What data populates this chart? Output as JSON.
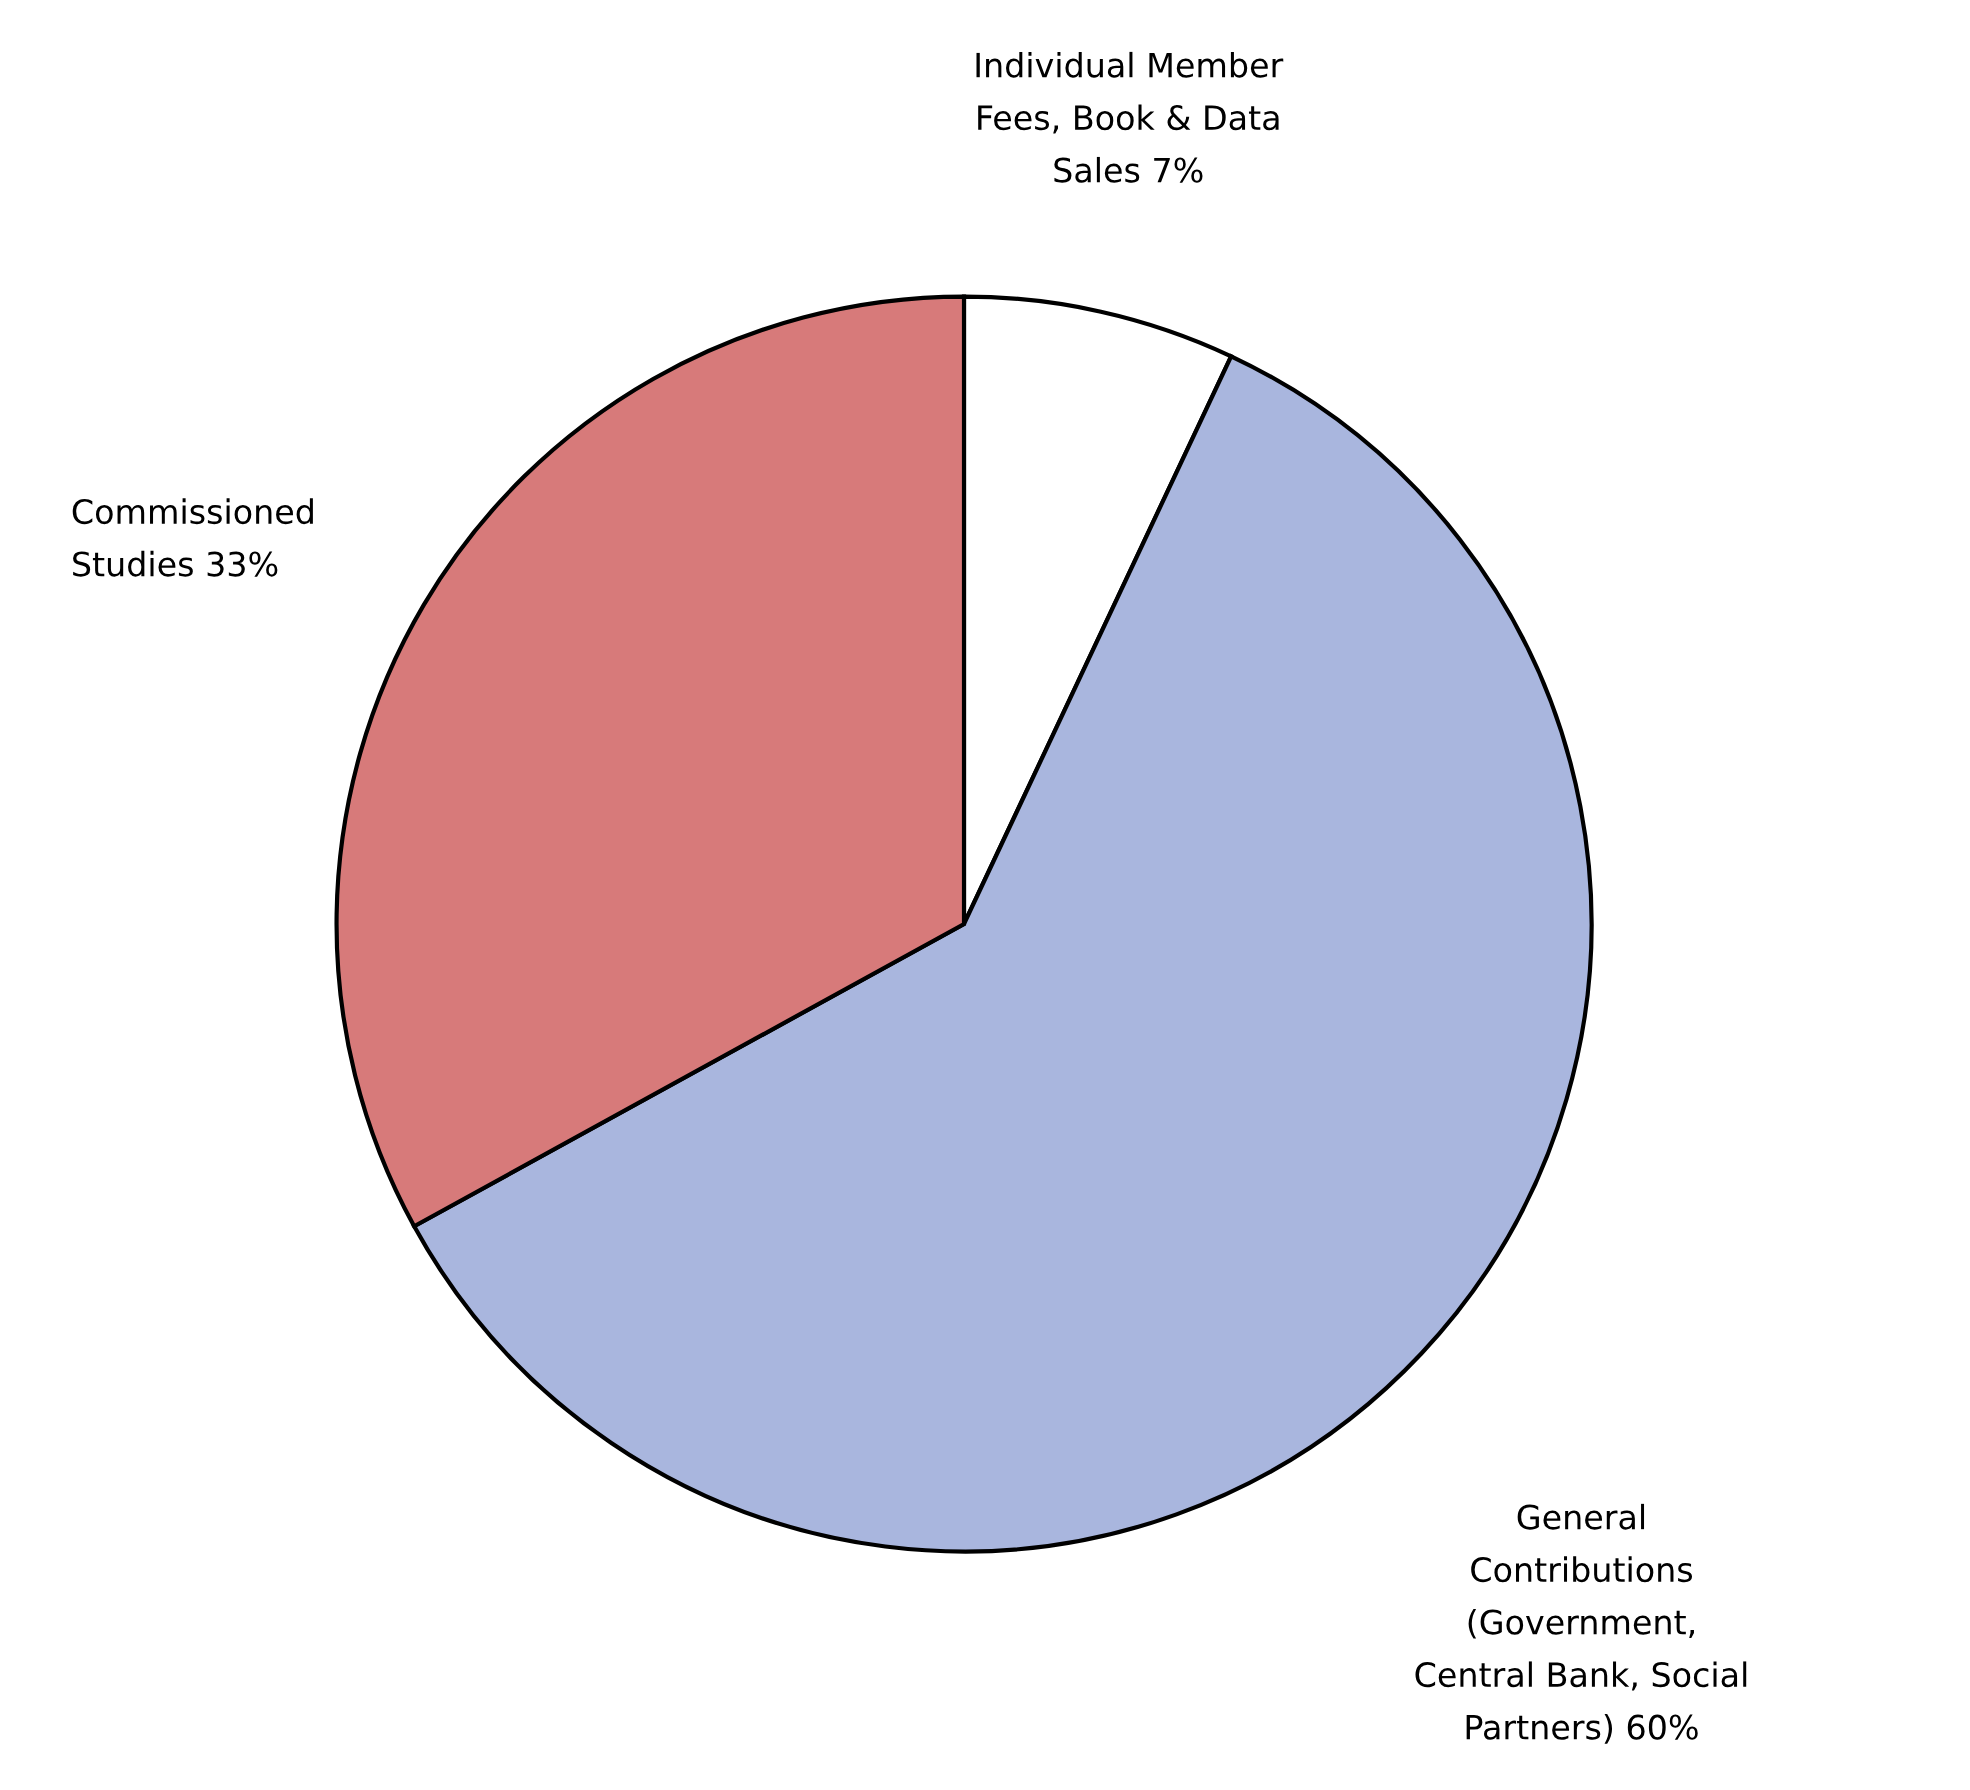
{
  "chart_data": {
    "type": "pie",
    "categories": [
      "Individual Member\nFees, Book & Data\nSales",
      "General\nContributions\n(Government,\nCentral Bank, Social\nPartners)",
      "Commissioned\nStudies"
    ],
    "values": [
      7,
      60,
      33
    ],
    "value_labels": [
      "7%",
      "60%",
      "33%"
    ],
    "colors": [
      "#ffffff",
      "#a9b6de",
      "#d77a7a"
    ],
    "legend": false
  }
}
